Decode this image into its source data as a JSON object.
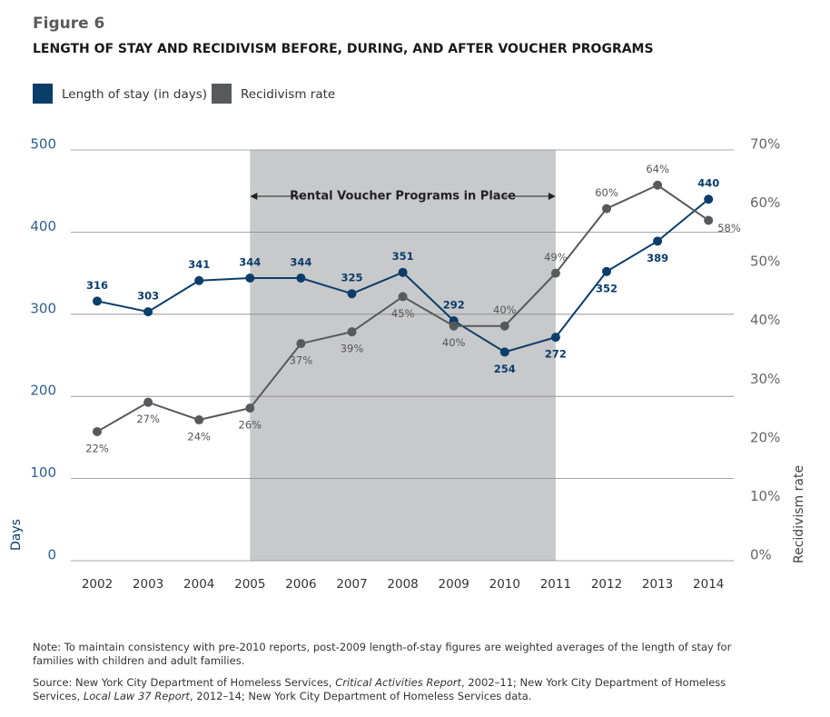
{
  "chart_data": {
    "type": "line",
    "figure": "Figure 6",
    "title": "LENGTH OF STAY AND RECIDIVISM BEFORE, DURING, AND AFTER VOUCHER PROGRAMS",
    "categories": [
      "2002",
      "2003",
      "2004",
      "2005",
      "2006",
      "2007",
      "2008",
      "2009",
      "2010",
      "2011",
      "2012",
      "2013",
      "2014"
    ],
    "series": [
      {
        "name": "Length of stay (in days)",
        "color": "#0b3d6b",
        "values": [
          316,
          303,
          341,
          344,
          344,
          325,
          351,
          292,
          254,
          272,
          352,
          389,
          440
        ]
      },
      {
        "name": "Recidivism rate",
        "color": "#58595b",
        "axis": "y2",
        "values": [
          22,
          27,
          24,
          26,
          37,
          39,
          45,
          40,
          40,
          49,
          60,
          64,
          58
        ],
        "value_labels": [
          "22%",
          "27%",
          "24%",
          "26%",
          "37%",
          "39%",
          "45%",
          "40%",
          "40%",
          "49%",
          "60%",
          "64%",
          "58%"
        ]
      }
    ],
    "ylabel": "Days",
    "y2label": "Recidivism rate",
    "ylim": [
      0,
      500
    ],
    "yticks": [
      0,
      100,
      200,
      300,
      400,
      500
    ],
    "y2lim": [
      0,
      70
    ],
    "y2ticks": [
      {
        "value": 0,
        "label": "0%"
      },
      {
        "value": 10,
        "label": "10%"
      },
      {
        "value": 20,
        "label": "20%"
      },
      {
        "value": 30,
        "label": "30%"
      },
      {
        "value": 40,
        "label": "40%"
      },
      {
        "value": 50,
        "label": "50%"
      },
      {
        "value": 60,
        "label": "60%"
      },
      {
        "value": 70,
        "label": "70%"
      }
    ],
    "grid": true,
    "highlight": {
      "start": "2005",
      "end": "2011",
      "label": "Rental Voucher Programs in Place",
      "color": "#c8c9ca"
    },
    "note": "Note: To maintain consistency with pre-2010 reports, post-2009 length-of-stay figures are weighted averages of the length of stay for families with children and adult families.",
    "source": [
      {
        "text": "Source: New York City Department of Homeless Services, ",
        "italic": false
      },
      {
        "text": "Critical Activities Report",
        "italic": true
      },
      {
        "text": ", 2002–11; New York City Department of Homeless Services, ",
        "italic": false
      },
      {
        "text": "Local Law 37 Report",
        "italic": true
      },
      {
        "text": ", 2012–14; New York City Department of Homeless Services data.",
        "italic": false
      }
    ]
  }
}
